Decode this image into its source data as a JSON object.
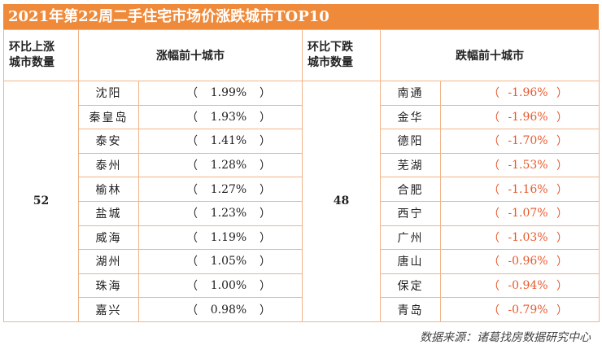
{
  "title": "2021年第22周二手住宅市场价涨跌城市TOP10",
  "headers": {
    "up_count_label_line1": "环比上涨",
    "up_count_label_line2": "城市数量",
    "up_top_label": "涨幅前十城市",
    "down_count_label_line1": "环比下跌",
    "down_count_label_line2": "城市数量",
    "down_top_label": "跌幅前十城市"
  },
  "up_count": "52",
  "down_count": "48",
  "rows": [
    {
      "up_city": "沈阳",
      "up_pct": "1.99%",
      "down_city": "南通",
      "down_pct": "-1.96%"
    },
    {
      "up_city": "秦皇岛",
      "up_pct": "1.93%",
      "down_city": "金华",
      "down_pct": "-1.96%"
    },
    {
      "up_city": "泰安",
      "up_pct": "1.41%",
      "down_city": "德阳",
      "down_pct": "-1.70%"
    },
    {
      "up_city": "泰州",
      "up_pct": "1.28%",
      "down_city": "芜湖",
      "down_pct": "-1.53%"
    },
    {
      "up_city": "榆林",
      "up_pct": "1.27%",
      "down_city": "合肥",
      "down_pct": "-1.16%"
    },
    {
      "up_city": "盐城",
      "up_pct": "1.23%",
      "down_city": "西宁",
      "down_pct": "-1.07%"
    },
    {
      "up_city": "威海",
      "up_pct": "1.19%",
      "down_city": "广州",
      "down_pct": "-1.03%"
    },
    {
      "up_city": "湖州",
      "up_pct": "1.05%",
      "down_city": "唐山",
      "down_pct": "-0.96%"
    },
    {
      "up_city": "珠海",
      "up_pct": "1.00%",
      "down_city": "保定",
      "down_pct": "-0.94%"
    },
    {
      "up_city": "嘉兴",
      "up_pct": "0.98%",
      "down_city": "青岛",
      "down_pct": "-0.79%"
    }
  ],
  "paren_open": "（",
  "paren_close": "）",
  "source": "数据来源：诸葛找房数据研究中心"
}
